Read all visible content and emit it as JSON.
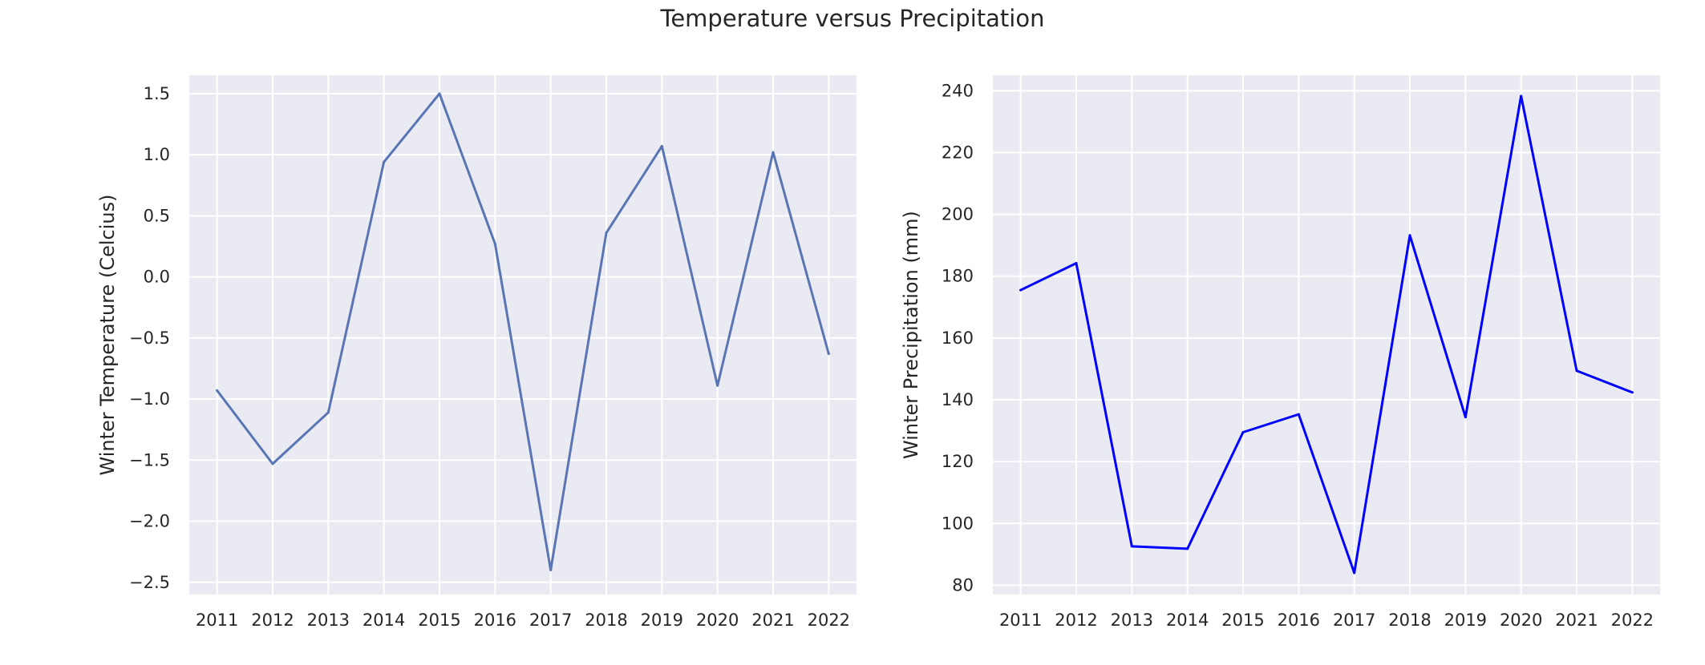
{
  "title": "Temperature versus Precipitation",
  "chart_data": [
    {
      "type": "line",
      "x": [
        2011,
        2012,
        2013,
        2014,
        2015,
        2016,
        2017,
        2018,
        2019,
        2020,
        2021,
        2022
      ],
      "series": [
        {
          "values": [
            -0.93,
            -1.53,
            -1.11,
            0.94,
            1.5,
            0.27,
            -2.4,
            0.36,
            1.07,
            -0.89,
            1.02,
            -0.63
          ],
          "color": "#5975b3"
        }
      ],
      "xlabel": "",
      "ylabel": "Winter Temperature (Celcius)",
      "xlim": [
        2010.5,
        2022.5
      ],
      "ylim": [
        -2.6,
        1.65
      ],
      "xticks": [
        2011,
        2012,
        2013,
        2014,
        2015,
        2016,
        2017,
        2018,
        2019,
        2020,
        2021,
        2022
      ],
      "xtick_labels": [
        "2011",
        "2012",
        "2013",
        "2014",
        "2015",
        "2016",
        "2017",
        "2018",
        "2019",
        "2020",
        "2021",
        "2022"
      ],
      "yticks": [
        -2.5,
        -2.0,
        -1.5,
        -1.0,
        -0.5,
        0.0,
        0.5,
        1.0,
        1.5
      ],
      "ytick_labels": [
        "−2.5",
        "−2.0",
        "−1.5",
        "−1.0",
        "−0.5",
        "0.0",
        "0.5",
        "1.0",
        "1.5"
      ],
      "grid": true,
      "background": "#eaeaf2"
    },
    {
      "type": "line",
      "x": [
        2011,
        2012,
        2013,
        2014,
        2015,
        2016,
        2017,
        2018,
        2019,
        2020,
        2021,
        2022
      ],
      "series": [
        {
          "values": [
            175.5,
            184.2,
            92.6,
            91.8,
            129.5,
            135.3,
            84.0,
            193.2,
            134.4,
            238.3,
            149.4,
            142.4
          ],
          "color": "#0000ff"
        }
      ],
      "xlabel": "",
      "ylabel": "Winter Precipitation (mm)",
      "xlim": [
        2010.5,
        2022.5
      ],
      "ylim": [
        77,
        245
      ],
      "xticks": [
        2011,
        2012,
        2013,
        2014,
        2015,
        2016,
        2017,
        2018,
        2019,
        2020,
        2021,
        2022
      ],
      "xtick_labels": [
        "2011",
        "2012",
        "2013",
        "2014",
        "2015",
        "2016",
        "2017",
        "2018",
        "2019",
        "2020",
        "2021",
        "2022"
      ],
      "yticks": [
        80,
        100,
        120,
        140,
        160,
        180,
        200,
        220,
        240
      ],
      "ytick_labels": [
        "80",
        "100",
        "120",
        "140",
        "160",
        "180",
        "200",
        "220",
        "240"
      ],
      "grid": true,
      "background": "#eaeaf2"
    }
  ]
}
